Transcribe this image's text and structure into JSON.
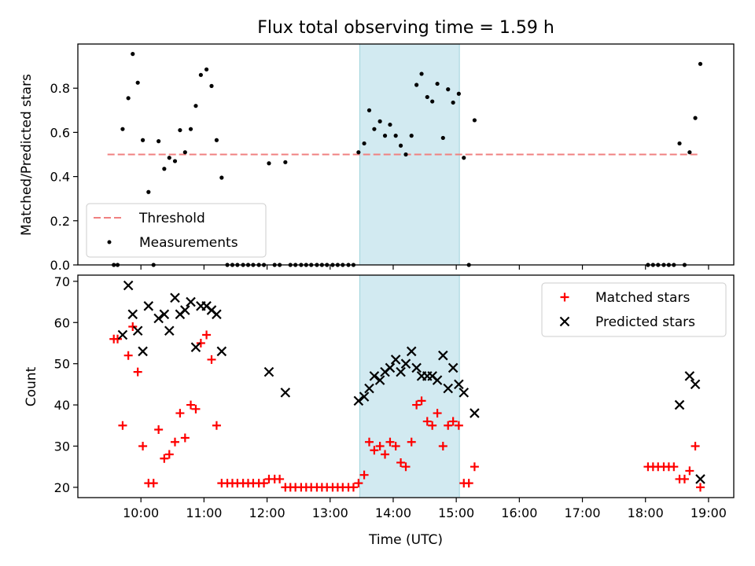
{
  "chart_data": {
    "type": "scatter",
    "title": "Flux total observing time = 1.59 h",
    "xlabel": "Time (UTC)",
    "xlim_hours": [
      9.0,
      19.4
    ],
    "xticks": [
      {
        "value": 10,
        "label": "10:00"
      },
      {
        "value": 11,
        "label": "11:00"
      },
      {
        "value": 12,
        "label": "12:00"
      },
      {
        "value": 13,
        "label": "13:00"
      },
      {
        "value": 14,
        "label": "14:00"
      },
      {
        "value": 15,
        "label": "15:00"
      },
      {
        "value": 16,
        "label": "16:00"
      },
      {
        "value": 17,
        "label": "17:00"
      },
      {
        "value": 18,
        "label": "18:00"
      },
      {
        "value": 19,
        "label": "19:00"
      }
    ],
    "shaded_span": {
      "from": 13.47,
      "to": 15.05,
      "color": "#add8e6"
    },
    "top": {
      "ylabel": "Matched/Predicted stars",
      "ylim": [
        0.0,
        1.0
      ],
      "yticks": [
        {
          "value": 0.0,
          "label": "0.0"
        },
        {
          "value": 0.2,
          "label": "0.2"
        },
        {
          "value": 0.4,
          "label": "0.4"
        },
        {
          "value": 0.6,
          "label": "0.6"
        },
        {
          "value": 0.8,
          "label": "0.8"
        }
      ],
      "threshold": {
        "name": "Threshold",
        "value": 0.5,
        "x_from": 9.47,
        "x_to": 18.86,
        "color": "#f08080"
      },
      "measurements": {
        "name": "Measurements",
        "color": "#000000",
        "points": [
          [
            9.57,
            0.0
          ],
          [
            9.63,
            0.0
          ],
          [
            9.71,
            0.615
          ],
          [
            9.8,
            0.755
          ],
          [
            9.87,
            0.955
          ],
          [
            9.95,
            0.825
          ],
          [
            10.03,
            0.565
          ],
          [
            10.12,
            0.33
          ],
          [
            10.2,
            0.0
          ],
          [
            10.28,
            0.56
          ],
          [
            10.37,
            0.435
          ],
          [
            10.45,
            0.485
          ],
          [
            10.54,
            0.47
          ],
          [
            10.62,
            0.61
          ],
          [
            10.7,
            0.51
          ],
          [
            10.79,
            0.615
          ],
          [
            10.87,
            0.72
          ],
          [
            10.95,
            0.86
          ],
          [
            11.04,
            0.885
          ],
          [
            11.12,
            0.81
          ],
          [
            11.2,
            0.565
          ],
          [
            11.28,
            0.395
          ],
          [
            11.37,
            0.0
          ],
          [
            11.45,
            0.0
          ],
          [
            11.53,
            0.0
          ],
          [
            11.62,
            0.0
          ],
          [
            11.7,
            0.0
          ],
          [
            11.78,
            0.0
          ],
          [
            11.87,
            0.0
          ],
          [
            11.95,
            0.0
          ],
          [
            12.03,
            0.46
          ],
          [
            12.12,
            0.0
          ],
          [
            12.2,
            0.0
          ],
          [
            12.29,
            0.465
          ],
          [
            12.37,
            0.0
          ],
          [
            12.45,
            0.0
          ],
          [
            12.54,
            0.0
          ],
          [
            12.62,
            0.0
          ],
          [
            12.7,
            0.0
          ],
          [
            12.79,
            0.0
          ],
          [
            12.87,
            0.0
          ],
          [
            12.95,
            0.0
          ],
          [
            13.04,
            0.0
          ],
          [
            13.12,
            0.0
          ],
          [
            13.2,
            0.0
          ],
          [
            13.29,
            0.0
          ],
          [
            13.37,
            0.0
          ],
          [
            13.45,
            0.51
          ],
          [
            13.54,
            0.55
          ],
          [
            13.62,
            0.7
          ],
          [
            13.7,
            0.615
          ],
          [
            13.79,
            0.65
          ],
          [
            13.87,
            0.585
          ],
          [
            13.95,
            0.635
          ],
          [
            14.04,
            0.585
          ],
          [
            14.12,
            0.54
          ],
          [
            14.2,
            0.5
          ],
          [
            14.29,
            0.585
          ],
          [
            14.37,
            0.815
          ],
          [
            14.45,
            0.865
          ],
          [
            14.54,
            0.76
          ],
          [
            14.62,
            0.74
          ],
          [
            14.7,
            0.82
          ],
          [
            14.79,
            0.575
          ],
          [
            14.87,
            0.795
          ],
          [
            14.95,
            0.735
          ],
          [
            15.04,
            0.775
          ],
          [
            15.12,
            0.485
          ],
          [
            15.2,
            0.0
          ],
          [
            15.29,
            0.655
          ],
          [
            18.04,
            0.0
          ],
          [
            18.12,
            0.0
          ],
          [
            18.2,
            0.0
          ],
          [
            18.29,
            0.0
          ],
          [
            18.37,
            0.0
          ],
          [
            18.45,
            0.0
          ],
          [
            18.54,
            0.55
          ],
          [
            18.62,
            0.0
          ],
          [
            18.7,
            0.51
          ],
          [
            18.79,
            0.665
          ],
          [
            18.87,
            0.91
          ]
        ]
      },
      "legend": {
        "position": "lower-left"
      }
    },
    "bottom": {
      "ylabel": "Count",
      "ylim": [
        17.5,
        71.5
      ],
      "yticks": [
        {
          "value": 20,
          "label": "20"
        },
        {
          "value": 30,
          "label": "30"
        },
        {
          "value": 40,
          "label": "40"
        },
        {
          "value": 50,
          "label": "50"
        },
        {
          "value": 60,
          "label": "60"
        },
        {
          "value": 70,
          "label": "70"
        }
      ],
      "series": [
        {
          "name": "Matched stars",
          "marker": "plus",
          "color": "#ff0000",
          "points": [
            [
              9.57,
              56
            ],
            [
              9.63,
              56
            ],
            [
              9.71,
              35
            ],
            [
              9.8,
              52
            ],
            [
              9.87,
              59
            ],
            [
              9.95,
              48
            ],
            [
              10.03,
              30
            ],
            [
              10.12,
              21
            ],
            [
              10.2,
              21
            ],
            [
              10.28,
              34
            ],
            [
              10.37,
              27
            ],
            [
              10.45,
              28
            ],
            [
              10.54,
              31
            ],
            [
              10.62,
              38
            ],
            [
              10.7,
              32
            ],
            [
              10.79,
              40
            ],
            [
              10.87,
              39
            ],
            [
              10.95,
              55
            ],
            [
              11.04,
              57
            ],
            [
              11.12,
              51
            ],
            [
              11.2,
              35
            ],
            [
              11.28,
              21
            ],
            [
              11.37,
              21
            ],
            [
              11.45,
              21
            ],
            [
              11.53,
              21
            ],
            [
              11.62,
              21
            ],
            [
              11.7,
              21
            ],
            [
              11.78,
              21
            ],
            [
              11.87,
              21
            ],
            [
              11.95,
              21
            ],
            [
              12.03,
              22
            ],
            [
              12.12,
              22
            ],
            [
              12.2,
              22
            ],
            [
              12.29,
              20
            ],
            [
              12.37,
              20
            ],
            [
              12.45,
              20
            ],
            [
              12.54,
              20
            ],
            [
              12.62,
              20
            ],
            [
              12.7,
              20
            ],
            [
              12.79,
              20
            ],
            [
              12.87,
              20
            ],
            [
              12.95,
              20
            ],
            [
              13.04,
              20
            ],
            [
              13.12,
              20
            ],
            [
              13.2,
              20
            ],
            [
              13.29,
              20
            ],
            [
              13.37,
              20
            ],
            [
              13.45,
              21
            ],
            [
              13.54,
              23
            ],
            [
              13.62,
              31
            ],
            [
              13.7,
              29
            ],
            [
              13.79,
              30
            ],
            [
              13.87,
              28
            ],
            [
              13.95,
              31
            ],
            [
              14.04,
              30
            ],
            [
              14.12,
              26
            ],
            [
              14.2,
              25
            ],
            [
              14.29,
              31
            ],
            [
              14.37,
              40
            ],
            [
              14.45,
              41
            ],
            [
              14.54,
              36
            ],
            [
              14.62,
              35
            ],
            [
              14.7,
              38
            ],
            [
              14.79,
              30
            ],
            [
              14.87,
              35
            ],
            [
              14.95,
              36
            ],
            [
              15.04,
              35
            ],
            [
              15.12,
              21
            ],
            [
              15.2,
              21
            ],
            [
              15.29,
              25
            ],
            [
              18.04,
              25
            ],
            [
              18.12,
              25
            ],
            [
              18.2,
              25
            ],
            [
              18.29,
              25
            ],
            [
              18.37,
              25
            ],
            [
              18.45,
              25
            ],
            [
              18.54,
              22
            ],
            [
              18.62,
              22
            ],
            [
              18.7,
              24
            ],
            [
              18.79,
              30
            ],
            [
              18.87,
              20
            ]
          ]
        },
        {
          "name": "Predicted stars",
          "marker": "x",
          "color": "#000000",
          "points": [
            [
              9.71,
              57
            ],
            [
              9.8,
              69
            ],
            [
              9.87,
              62
            ],
            [
              9.95,
              58
            ],
            [
              10.03,
              53
            ],
            [
              10.12,
              64
            ],
            [
              10.28,
              61
            ],
            [
              10.37,
              62
            ],
            [
              10.45,
              58
            ],
            [
              10.54,
              66
            ],
            [
              10.62,
              62
            ],
            [
              10.7,
              63
            ],
            [
              10.79,
              65
            ],
            [
              10.87,
              54
            ],
            [
              10.95,
              64
            ],
            [
              11.04,
              64
            ],
            [
              11.12,
              63
            ],
            [
              11.2,
              62
            ],
            [
              11.28,
              53
            ],
            [
              12.03,
              48
            ],
            [
              12.29,
              43
            ],
            [
              13.45,
              41
            ],
            [
              13.54,
              42
            ],
            [
              13.62,
              44
            ],
            [
              13.7,
              47
            ],
            [
              13.79,
              46
            ],
            [
              13.87,
              48
            ],
            [
              13.95,
              49
            ],
            [
              14.04,
              51
            ],
            [
              14.12,
              48
            ],
            [
              14.2,
              50
            ],
            [
              14.29,
              53
            ],
            [
              14.37,
              49
            ],
            [
              14.45,
              47
            ],
            [
              14.54,
              47
            ],
            [
              14.62,
              47
            ],
            [
              14.7,
              46
            ],
            [
              14.79,
              52
            ],
            [
              14.87,
              44
            ],
            [
              14.95,
              49
            ],
            [
              15.04,
              45
            ],
            [
              15.12,
              43
            ],
            [
              15.29,
              38
            ],
            [
              18.54,
              40
            ],
            [
              18.7,
              47
            ],
            [
              18.79,
              45
            ],
            [
              18.87,
              22
            ]
          ]
        }
      ],
      "legend": {
        "position": "upper-right"
      }
    }
  }
}
